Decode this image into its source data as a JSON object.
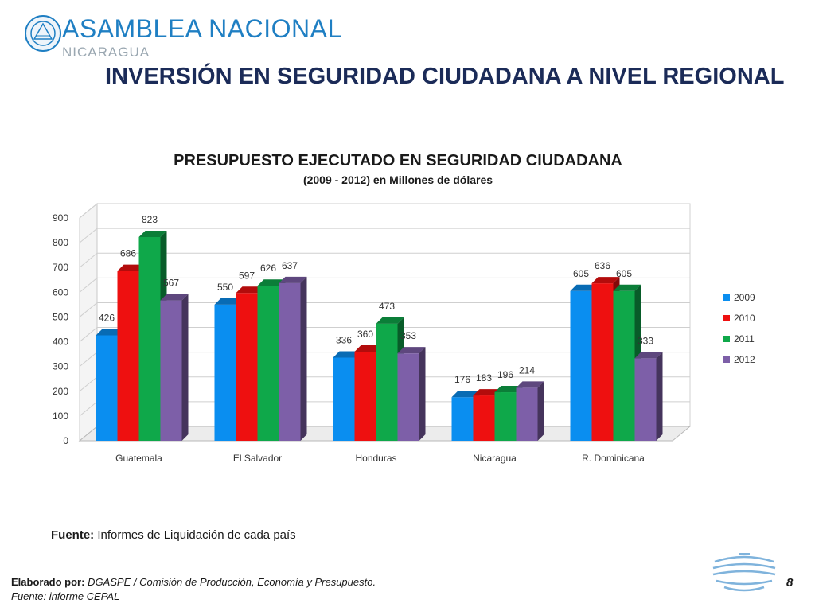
{
  "header": {
    "org_name": "ASAMBLEA NACIONAL",
    "org_subtitle": "NICARAGUA",
    "logo_icon": "national-seal-icon"
  },
  "slide_title": "INVERSIÓN EN SEGURIDAD CIUDADANA A NIVEL REGIONAL",
  "chart_data": {
    "type": "bar",
    "title": "PRESUPUESTO EJECUTADO EN SEGURIDAD CIUDADANA",
    "subtitle": "(2009 - 2012) en Millones de dólares",
    "categories": [
      "Guatemala",
      "El Salvador",
      "Honduras",
      "Nicaragua",
      "R. Dominicana"
    ],
    "series": [
      {
        "name": "2009",
        "color": "#0a8ef0",
        "values": [
          426,
          550,
          336,
          176,
          605
        ]
      },
      {
        "name": "2010",
        "color": "#ee1010",
        "values": [
          686,
          597,
          360,
          183,
          636
        ]
      },
      {
        "name": "2011",
        "color": "#0fa84a",
        "values": [
          823,
          626,
          473,
          196,
          605
        ]
      },
      {
        "name": "2012",
        "color": "#7d5fa8",
        "values": [
          567,
          637,
          353,
          214,
          333
        ]
      }
    ],
    "yticks": [
      "0",
      "100",
      "200",
      "300",
      "400",
      "500",
      "600",
      "700",
      "800",
      "900"
    ],
    "ylim": [
      0,
      900
    ],
    "grid": true,
    "legend": "right",
    "style": "3d-clustered-column"
  },
  "source": {
    "label": "Fuente:",
    "text": " Informes de Liquidación de cada país"
  },
  "footer": {
    "by_label": "Elaborado por:",
    "by_text": " DGASPE / Comisión de Producción, Economía y Presupuesto.",
    "source_text": "Fuente: informe CEPAL",
    "page_number": "8",
    "footer_logo_icon": "assembly-arc-logo-icon"
  }
}
